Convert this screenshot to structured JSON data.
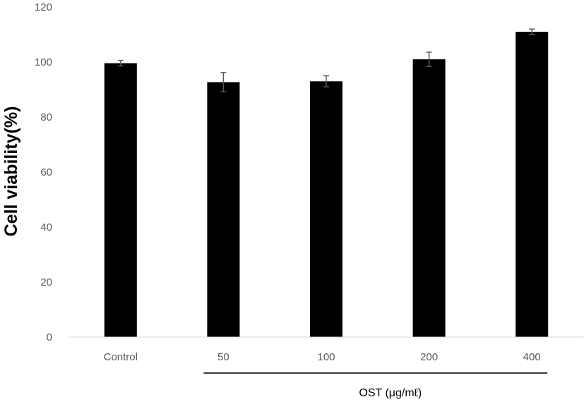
{
  "chart_data": {
    "type": "bar",
    "categories": [
      "Control",
      "50",
      "100",
      "200",
      "400"
    ],
    "values": [
      99.6,
      92.7,
      93.0,
      101.0,
      111.0
    ],
    "errors": [
      1.0,
      3.5,
      2.0,
      2.6,
      1.0
    ],
    "yticks": [
      "0",
      "20",
      "40",
      "60",
      "80",
      "100",
      "120"
    ],
    "ylim": [
      0,
      120
    ],
    "ylabel": "Cell viability(%)",
    "xlabel": "",
    "bracket_label": "OST (μg/mℓ)",
    "bracket_from_category": 1,
    "bracket_to_category": 4,
    "grid": false,
    "legend": "none",
    "colors": {
      "bar": "#000000",
      "error_bar": "#595959",
      "axis": "#d9d9d9",
      "tick_text": "#595959",
      "bracket": "#000000"
    }
  }
}
